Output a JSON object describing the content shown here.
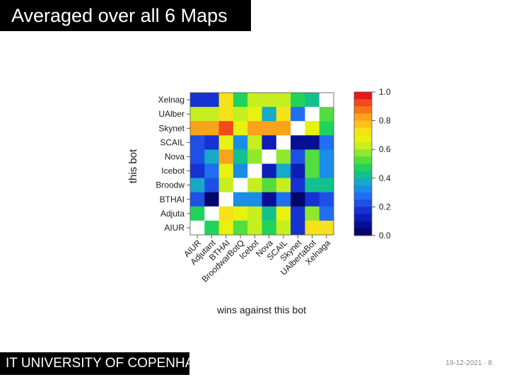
{
  "slide": {
    "title": "Averaged over all 6 Maps",
    "footer_brand": "IT UNIVERSITY OF COPENHAGEN",
    "date": "19-12-2021",
    "page": "8"
  },
  "chart_data": {
    "type": "heatmap",
    "title": "",
    "xlabel": "wins against this bot",
    "ylabel": "this bot",
    "x_categories": [
      "AIUR",
      "Adjutant",
      "BTHAI",
      "BroodwarBotQ",
      "Icebot",
      "Nova",
      "SCAIL",
      "Skynet",
      "UAlbertaBot",
      "Xelnaga"
    ],
    "y_categories": [
      "Xelnag",
      "UAlber",
      "Skynet",
      "SCAIL",
      "Nova",
      "Icebot",
      "Broodw",
      "BTHAI",
      "Adjuta",
      "AIUR"
    ],
    "values": [
      [
        0.2,
        0.2,
        0.75,
        0.5,
        0.65,
        0.65,
        0.65,
        0.5,
        0.45,
        null
      ],
      [
        0.65,
        0.65,
        0.75,
        0.65,
        0.7,
        0.4,
        0.75,
        0.3,
        null,
        0.55
      ],
      [
        0.8,
        0.85,
        0.9,
        0.7,
        0.85,
        0.85,
        0.8,
        null,
        0.7,
        0.5
      ],
      [
        0.25,
        0.2,
        0.7,
        0.35,
        0.65,
        0.15,
        null,
        0.1,
        0.1,
        0.3
      ],
      [
        0.25,
        0.4,
        0.8,
        0.45,
        0.6,
        null,
        0.6,
        0.25,
        0.55,
        0.35
      ],
      [
        0.2,
        0.3,
        0.7,
        0.35,
        null,
        0.15,
        0.4,
        0.15,
        0.55,
        0.35
      ],
      [
        0.4,
        0.25,
        0.65,
        null,
        0.65,
        0.55,
        0.65,
        0.2,
        0.45,
        0.45
      ],
      [
        0.25,
        0.05,
        null,
        0.35,
        0.35,
        0.1,
        0.3,
        0.05,
        0.2,
        0.25
      ],
      [
        0.5,
        null,
        0.75,
        0.7,
        0.65,
        0.45,
        0.7,
        0.2,
        0.6,
        0.3
      ],
      [
        null,
        0.5,
        0.7,
        0.55,
        0.65,
        0.5,
        0.65,
        0.2,
        0.75,
        0.75
      ]
    ],
    "missing_color": "#ffffff",
    "colorbar": {
      "min": 0.0,
      "max": 1.0,
      "tick_values": [
        1.0,
        0.8,
        0.6,
        0.4,
        0.2,
        0.0
      ],
      "tick_labels": [
        "1.0",
        "0.8",
        "0.6",
        "0.4",
        "0.2",
        "0.0"
      ],
      "colors_top_to_bottom": [
        "#e31a1c",
        "#f24a18",
        "#f7741a",
        "#f9a21b",
        "#fbc21c",
        "#f5e21a",
        "#e8f10f",
        "#c6ef1f",
        "#8fe82c",
        "#53de3f",
        "#22d35b",
        "#13c18d",
        "#16a9c8",
        "#1a8de6",
        "#1f6ff0",
        "#1f50e6",
        "#1632d2",
        "#0c1db8",
        "#070f94",
        "#04066a"
      ]
    },
    "grid": false,
    "legend_position": "right"
  }
}
